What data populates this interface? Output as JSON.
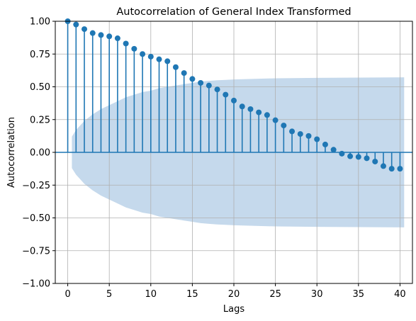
{
  "chart_data": {
    "type": "stem",
    "title": "Autocorrelation of General Index Transformed",
    "xlabel": "Lags",
    "ylabel": "Autocorrelation",
    "xlim": [
      -1.5,
      41.5
    ],
    "ylim": [
      -1.0,
      1.0
    ],
    "xticks": [
      0,
      5,
      10,
      15,
      20,
      25,
      30,
      35,
      40
    ],
    "yticks": [
      -1.0,
      -0.75,
      -0.5,
      -0.25,
      0.0,
      0.25,
      0.5,
      0.75,
      1.0
    ],
    "xtick_labels": [
      "0",
      "5",
      "10",
      "15",
      "20",
      "25",
      "30",
      "35",
      "40"
    ],
    "ytick_labels": [
      "−1.00",
      "−0.75",
      "−0.50",
      "−0.25",
      "0.00",
      "0.25",
      "0.50",
      "0.75",
      "1.00"
    ],
    "grid": true,
    "lags": [
      0,
      1,
      2,
      3,
      4,
      5,
      6,
      7,
      8,
      9,
      10,
      11,
      12,
      13,
      14,
      15,
      16,
      17,
      18,
      19,
      20,
      21,
      22,
      23,
      24,
      25,
      26,
      27,
      28,
      29,
      30,
      31,
      32,
      33,
      34,
      35,
      36,
      37,
      38,
      39,
      40
    ],
    "values": [
      1.0,
      0.975,
      0.94,
      0.91,
      0.895,
      0.885,
      0.87,
      0.83,
      0.79,
      0.75,
      0.73,
      0.71,
      0.695,
      0.65,
      0.605,
      0.56,
      0.53,
      0.51,
      0.48,
      0.44,
      0.395,
      0.35,
      0.33,
      0.305,
      0.285,
      0.245,
      0.205,
      0.16,
      0.14,
      0.125,
      0.1,
      0.06,
      0.02,
      -0.01,
      -0.03,
      -0.035,
      -0.045,
      -0.07,
      -0.105,
      -0.125,
      -0.125
    ],
    "confidence_band": {
      "lags": [
        0.5,
        1,
        2,
        3,
        4,
        5,
        6,
        7,
        8,
        9,
        10,
        11,
        12,
        13,
        14,
        15,
        16,
        17,
        18,
        19,
        20,
        25,
        30,
        35,
        40.5
      ],
      "upper": [
        0.12,
        0.17,
        0.24,
        0.29,
        0.33,
        0.36,
        0.39,
        0.42,
        0.44,
        0.46,
        0.47,
        0.49,
        0.5,
        0.51,
        0.52,
        0.53,
        0.54,
        0.545,
        0.55,
        0.553,
        0.556,
        0.565,
        0.568,
        0.57,
        0.572
      ]
    },
    "colors": {
      "stem": "#1f77b4",
      "marker": "#1f77b4",
      "band": "#c5d9ec",
      "grid": "#b0b0b0",
      "zero_line": "#1f77b4"
    }
  }
}
